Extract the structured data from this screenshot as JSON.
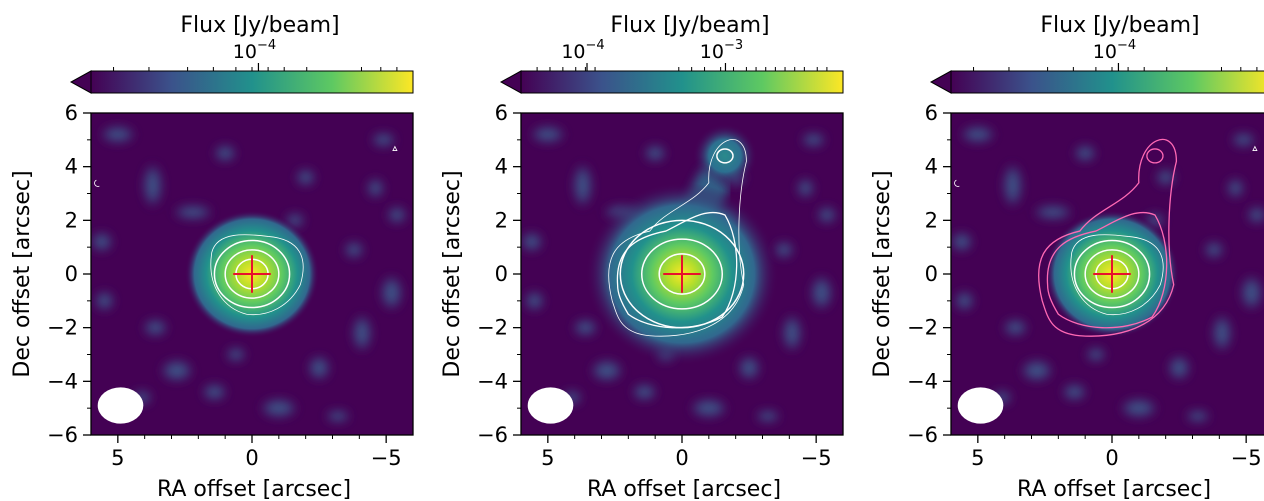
{
  "chart_data": [
    {
      "type": "heatmap",
      "xlabel": "RA offset [arcsec]",
      "ylabel": "Dec offset [arcsec]",
      "xlim": [
        6,
        -6
      ],
      "ylim": [
        -6,
        6
      ],
      "x_ticks": [
        "5",
        "0",
        "−5"
      ],
      "y_ticks": [
        "−6",
        "−4",
        "−2",
        "0",
        "2",
        "4",
        "6"
      ],
      "colorbar": {
        "label": "Flux [Jy/beam]",
        "scale": "log",
        "extend": "min",
        "ticks": [
          {
            "base": "10",
            "exponent": "−4"
          }
        ],
        "colors": [
          "#440154",
          "#3b528b",
          "#21918c",
          "#5ec962",
          "#fde725"
        ]
      },
      "source": {
        "ra": 0,
        "dec": 0,
        "peak": "bright",
        "marker": "red-cross"
      },
      "secondary_source": null,
      "contours": {
        "color": "#ffffff",
        "levels": 4
      },
      "overlay_contours": null,
      "beam": {
        "ra": 4.9,
        "dec": -4.9,
        "major": 1.7,
        "minor": 1.35
      }
    },
    {
      "type": "heatmap",
      "xlabel": "RA offset [arcsec]",
      "ylabel": "Dec offset [arcsec]",
      "xlim": [
        6,
        -6
      ],
      "ylim": [
        -6,
        6
      ],
      "x_ticks": [
        "5",
        "0",
        "−5"
      ],
      "y_ticks": [
        "−6",
        "−4",
        "−2",
        "0",
        "2",
        "4",
        "6"
      ],
      "colorbar": {
        "label": "Flux [Jy/beam]",
        "scale": "log",
        "extend": "min",
        "ticks": [
          {
            "base": "10",
            "exponent": "−4"
          },
          {
            "base": "10",
            "exponent": "−3"
          }
        ],
        "colors": [
          "#440154",
          "#3b528b",
          "#21918c",
          "#5ec962",
          "#fde725"
        ]
      },
      "source": {
        "ra": 0,
        "dec": 0,
        "peak": "bright",
        "marker": "red-cross"
      },
      "secondary_source": {
        "ra": -1.6,
        "dec": 4.4
      },
      "contours": {
        "color": "#ffffff",
        "levels": 5
      },
      "overlay_contours": null,
      "beam": {
        "ra": 4.9,
        "dec": -4.9,
        "major": 1.7,
        "minor": 1.35
      }
    },
    {
      "type": "heatmap",
      "xlabel": "RA offset [arcsec]",
      "ylabel": "Dec offset [arcsec]",
      "xlim": [
        6,
        -6
      ],
      "ylim": [
        -6,
        6
      ],
      "x_ticks": [
        "5",
        "0",
        "−5"
      ],
      "y_ticks": [
        "−6",
        "−4",
        "−2",
        "0",
        "2",
        "4",
        "6"
      ],
      "colorbar": {
        "label": "Flux [Jy/beam]",
        "scale": "log",
        "extend": "min",
        "ticks": [
          {
            "base": "10",
            "exponent": "−4"
          }
        ],
        "colors": [
          "#440154",
          "#3b528b",
          "#21918c",
          "#5ec962",
          "#fde725"
        ]
      },
      "source": {
        "ra": 0,
        "dec": 0,
        "peak": "bright",
        "marker": "red-cross"
      },
      "secondary_source": null,
      "contours": {
        "color": "#ffffff",
        "levels": 4
      },
      "overlay_contours": {
        "color": "#ff69b4",
        "levels": 3
      },
      "beam": {
        "ra": 4.9,
        "dec": -4.9,
        "major": 1.7,
        "minor": 1.35
      }
    }
  ]
}
